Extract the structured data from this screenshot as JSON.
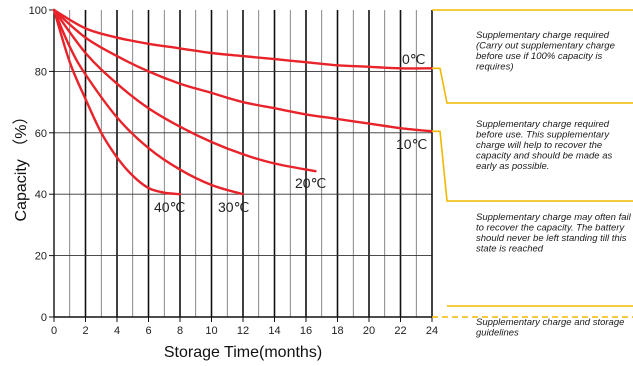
{
  "chart_data": {
    "type": "line",
    "xlabel": "Storage Time(months)",
    "ylabel": "Capacity （%）",
    "xlim": [
      0,
      24
    ],
    "ylim": [
      0,
      100
    ],
    "x_ticks": [
      "0",
      "2",
      "4",
      "6",
      "8",
      "10",
      "12",
      "14",
      "16",
      "18",
      "20",
      "22",
      "24"
    ],
    "y_ticks": [
      "0",
      "20",
      "40",
      "60",
      "80",
      "100"
    ],
    "grid": "vertical lines every 1 month (bold every 2 months), horizontal lines at 20, 40, 60, 80",
    "series_color": "#e8232a",
    "accent_color": "#f2b800",
    "series": [
      {
        "label": "0℃",
        "x": [
          0,
          2,
          4,
          6,
          8,
          10,
          12,
          14,
          16,
          18,
          20,
          22,
          24
        ],
        "y": [
          100,
          94,
          91,
          89,
          87.5,
          86,
          85,
          84,
          83,
          82,
          81.5,
          81,
          81
        ]
      },
      {
        "label": "10℃",
        "x": [
          0,
          2,
          4,
          6,
          8,
          10,
          12,
          14,
          16,
          18,
          20,
          22,
          24
        ],
        "y": [
          100,
          91,
          85,
          80,
          76,
          73,
          70,
          68,
          66,
          64.5,
          63,
          61.5,
          60.5
        ]
      },
      {
        "label": "20℃",
        "x": [
          0,
          2,
          4,
          6,
          8,
          10,
          12,
          14,
          16.6
        ],
        "y": [
          100,
          86,
          76,
          68,
          62,
          57,
          53,
          50,
          47.5
        ]
      },
      {
        "label": "30℃",
        "x": [
          0,
          1,
          2,
          4,
          6,
          8,
          10,
          12
        ],
        "y": [
          100,
          88,
          79,
          65,
          55,
          48,
          43,
          40
        ]
      },
      {
        "label": "40℃",
        "x": [
          0,
          1,
          2,
          3,
          4,
          5,
          6,
          7,
          8
        ],
        "y": [
          100,
          83,
          71,
          60,
          52,
          46,
          42,
          40.5,
          40
        ]
      }
    ],
    "annotations": [
      {
        "text": "Supplementary charge required (Carry out supplementary charge before use if 100% capacity is requires)"
      },
      {
        "text": "Supplementary charge required before use. This supplementary charge will help to recover the capacity and should be made  as early as possible."
      },
      {
        "text": "Supplementary charge may often fail to recover the capacity. The battery should never be left standing till this state is reached"
      },
      {
        "text": "Supplementary charge and storage guidelines"
      }
    ]
  }
}
